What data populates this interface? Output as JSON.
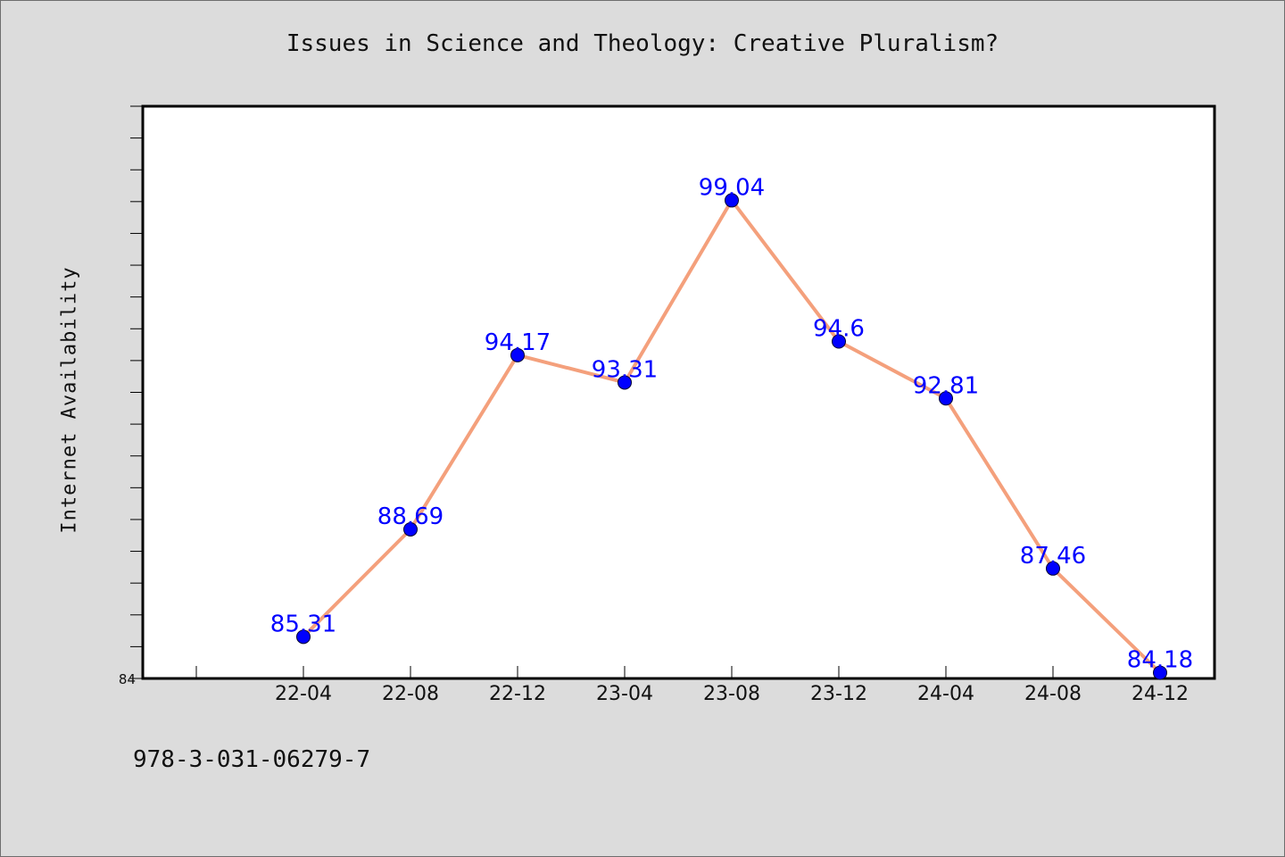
{
  "chart_data": {
    "type": "line",
    "title": "Issues in Science and Theology: Creative Pluralism?",
    "ylabel": "Internet Availability",
    "xlabel": "",
    "categories": [
      "22-04",
      "22-08",
      "22-12",
      "23-04",
      "23-08",
      "23-12",
      "24-04",
      "24-08",
      "24-12"
    ],
    "series": [
      {
        "values": [
          85.31,
          88.69,
          94.17,
          93.31,
          99.04,
          94.6,
          92.81,
          87.46,
          84.18
        ],
        "labels": [
          "85.31",
          "88.69",
          "94.17",
          "93.31",
          "99.04",
          "94.6",
          "92.81",
          "87.46",
          "84.18"
        ]
      }
    ],
    "ylim": [
      84,
      102
    ],
    "yticks_labeled": [
      {
        "value": 84,
        "label": "84"
      }
    ],
    "minor_tick_step": 1,
    "grid": false,
    "colors": {
      "line": "#f4a07c",
      "marker": "#0000ff",
      "data_label": "#0000ff",
      "plot_background": "#ffffff",
      "figure_background": "#dcdcdc"
    }
  },
  "footer": {
    "isbn": "978-3-031-06279-7"
  }
}
